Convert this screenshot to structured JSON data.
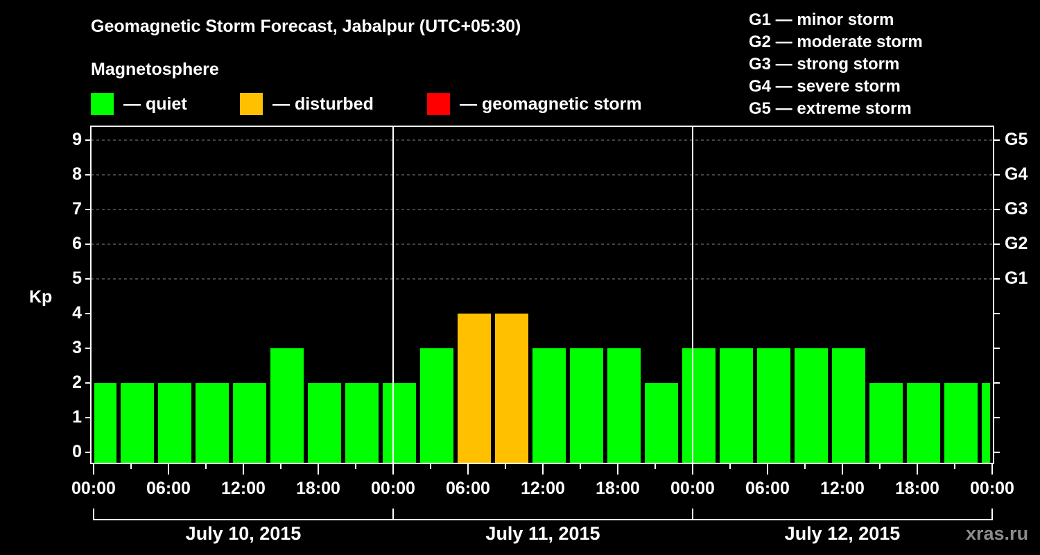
{
  "title": "Geomagnetic Storm Forecast, Jabalpur (UTC+05:30)",
  "section_title": "Magnetosphere",
  "legend": [
    {
      "label": "— quiet",
      "color": "#00ff00"
    },
    {
      "label": "— disturbed",
      "color": "#ffc000"
    },
    {
      "label": "— geomagnetic storm",
      "color": "#ff0000"
    }
  ],
  "g_legend": [
    "G1 — minor storm",
    "G2 — moderate storm",
    "G3 — strong storm",
    "G4 — severe storm",
    "G5 — extreme storm"
  ],
  "watermark": "xras.ru",
  "chart_data": {
    "type": "bar",
    "title": "Geomagnetic Storm Forecast, Jabalpur (UTC+05:30)",
    "ylabel": "Kp",
    "xlabel": "",
    "ylim": [
      0,
      9
    ],
    "y_ticks": [
      "0",
      "1",
      "2",
      "3",
      "4",
      "5",
      "6",
      "7",
      "8",
      "9"
    ],
    "right_axis_ticks": [
      {
        "kp": 5,
        "label": "G1"
      },
      {
        "kp": 6,
        "label": "G2"
      },
      {
        "kp": 7,
        "label": "G3"
      },
      {
        "kp": 8,
        "label": "G4"
      },
      {
        "kp": 9,
        "label": "G5"
      }
    ],
    "x_tick_labels": [
      "00:00",
      "06:00",
      "12:00",
      "18:00",
      "00:00",
      "06:00",
      "12:00",
      "18:00",
      "00:00",
      "06:00",
      "12:00",
      "18:00",
      "00:00"
    ],
    "days": [
      "July 10, 2015",
      "July 11, 2015",
      "July 12, 2015"
    ],
    "grid": "dashed horizontal lines at Kp 5-9",
    "categories": [
      "Jul10 00:00",
      "Jul10 01:30",
      "Jul10 04:30",
      "Jul10 07:30",
      "Jul10 10:30",
      "Jul10 13:30",
      "Jul10 16:30",
      "Jul10 19:30",
      "Jul10 22:30",
      "Jul11 01:30",
      "Jul11 04:30",
      "Jul11 07:30",
      "Jul11 10:30",
      "Jul11 13:30",
      "Jul11 16:30",
      "Jul11 19:30",
      "Jul11 22:30",
      "Jul12 01:30",
      "Jul12 04:30",
      "Jul12 07:30",
      "Jul12 10:30",
      "Jul12 13:30",
      "Jul12 16:30",
      "Jul12 19:30",
      "Jul12 22:30"
    ],
    "values": [
      2,
      2,
      2,
      2,
      2,
      3,
      2,
      2,
      2,
      3,
      4,
      4,
      3,
      3,
      3,
      2,
      3,
      3,
      3,
      3,
      3,
      2,
      2,
      2,
      2
    ],
    "status": [
      "quiet",
      "quiet",
      "quiet",
      "quiet",
      "quiet",
      "quiet",
      "quiet",
      "quiet",
      "quiet",
      "quiet",
      "disturbed",
      "disturbed",
      "quiet",
      "quiet",
      "quiet",
      "quiet",
      "quiet",
      "quiet",
      "quiet",
      "quiet",
      "quiet",
      "quiet",
      "quiet",
      "quiet",
      "quiet"
    ],
    "colors": {
      "quiet": "#00ff00",
      "disturbed": "#ffc000",
      "storm": "#ff0000"
    }
  }
}
